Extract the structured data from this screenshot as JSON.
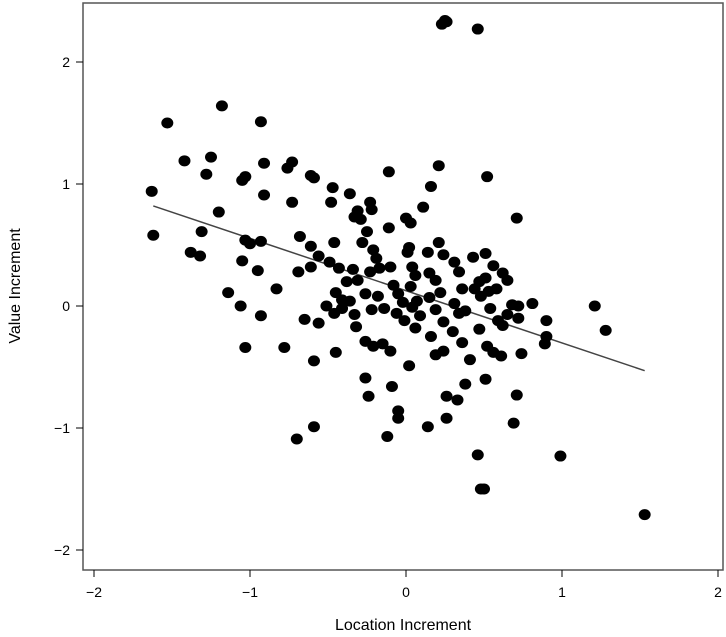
{
  "colors": {
    "background": "#ffffff",
    "ink": "#000000",
    "frame": "#555555",
    "fit_line": "#444444"
  },
  "chart_data": {
    "type": "scatter",
    "xlabel": "Location Increment",
    "ylabel": "Value Increment",
    "xlim": [
      -2,
      2
    ],
    "ylim": [
      -2.1,
      2.4
    ],
    "x_ticks": [
      -2,
      -1,
      0,
      1,
      2
    ],
    "y_ticks": [
      -2,
      -1,
      0,
      1,
      2
    ],
    "x_tick_labels": [
      "−2",
      "−1",
      "0",
      "1",
      "2"
    ],
    "y_tick_labels": [
      "−2",
      "−1",
      "0",
      "1",
      "2"
    ],
    "grid": false,
    "legend": "none",
    "fit_line": {
      "x": [
        -1.62,
        1.53
      ],
      "y": [
        0.82,
        -0.53
      ]
    },
    "points": [
      [
        0.25,
        2.34
      ],
      [
        0.23,
        2.31
      ],
      [
        0.26,
        2.33
      ],
      [
        0.46,
        2.27
      ],
      [
        -1.53,
        1.5
      ],
      [
        -1.18,
        1.64
      ],
      [
        -0.93,
        1.51
      ],
      [
        -1.63,
        0.94
      ],
      [
        -1.62,
        0.58
      ],
      [
        -1.42,
        1.19
      ],
      [
        -1.25,
        1.22
      ],
      [
        -1.28,
        1.08
      ],
      [
        -1.2,
        0.77
      ],
      [
        -1.31,
        0.61
      ],
      [
        -1.38,
        0.44
      ],
      [
        -1.32,
        0.41
      ],
      [
        -1.05,
        1.03
      ],
      [
        -1.03,
        1.06
      ],
      [
        -1.03,
        0.54
      ],
      [
        -1.0,
        0.51
      ],
      [
        -1.05,
        0.37
      ],
      [
        -0.91,
        1.17
      ],
      [
        -0.91,
        0.91
      ],
      [
        -0.93,
        0.53
      ],
      [
        -0.95,
        0.29
      ],
      [
        -0.83,
        0.14
      ],
      [
        -1.14,
        0.11
      ],
      [
        -1.06,
        0.0
      ],
      [
        -0.93,
        -0.08
      ],
      [
        -1.03,
        -0.34
      ],
      [
        -0.78,
        -0.34
      ],
      [
        -0.76,
        1.13
      ],
      [
        -0.73,
        1.18
      ],
      [
        -0.73,
        0.85
      ],
      [
        -0.68,
        0.57
      ],
      [
        -0.61,
        1.07
      ],
      [
        -0.59,
        1.05
      ],
      [
        -0.61,
        0.49
      ],
      [
        -0.56,
        0.41
      ],
      [
        -0.69,
        0.28
      ],
      [
        -0.61,
        0.32
      ],
      [
        -0.65,
        -0.11
      ],
      [
        -0.56,
        -0.14
      ],
      [
        -0.59,
        -0.45
      ],
      [
        -0.59,
        -0.99
      ],
      [
        -0.7,
        -1.09
      ],
      [
        -0.47,
        0.97
      ],
      [
        -0.48,
        0.85
      ],
      [
        -0.36,
        0.92
      ],
      [
        -0.31,
        0.78
      ],
      [
        -0.33,
        0.73
      ],
      [
        -0.29,
        0.71
      ],
      [
        -0.23,
        0.85
      ],
      [
        -0.22,
        0.79
      ],
      [
        -0.46,
        0.52
      ],
      [
        -0.49,
        0.36
      ],
      [
        -0.43,
        0.31
      ],
      [
        -0.38,
        0.2
      ],
      [
        -0.45,
        0.11
      ],
      [
        -0.41,
        0.05
      ],
      [
        -0.34,
        0.3
      ],
      [
        -0.31,
        0.21
      ],
      [
        -0.28,
        0.52
      ],
      [
        -0.25,
        0.61
      ],
      [
        -0.21,
        0.46
      ],
      [
        -0.19,
        0.39
      ],
      [
        -0.23,
        0.28
      ],
      [
        -0.17,
        0.31
      ],
      [
        -0.51,
        0.0
      ],
      [
        -0.46,
        -0.06
      ],
      [
        -0.41,
        -0.02
      ],
      [
        -0.36,
        0.04
      ],
      [
        -0.33,
        -0.07
      ],
      [
        -0.26,
        0.1
      ],
      [
        -0.22,
        -0.03
      ],
      [
        -0.18,
        0.08
      ],
      [
        -0.14,
        -0.02
      ],
      [
        -0.45,
        -0.38
      ],
      [
        -0.32,
        -0.17
      ],
      [
        -0.26,
        -0.29
      ],
      [
        -0.21,
        -0.33
      ],
      [
        -0.15,
        -0.31
      ],
      [
        -0.26,
        -0.59
      ],
      [
        -0.24,
        -0.74
      ],
      [
        -0.11,
        1.1
      ],
      [
        -0.11,
        0.64
      ],
      [
        -0.1,
        0.32
      ],
      [
        -0.08,
        0.17
      ],
      [
        -0.05,
        0.1
      ],
      [
        -0.02,
        0.03
      ],
      [
        -0.06,
        -0.06
      ],
      [
        -0.01,
        -0.12
      ],
      [
        -0.1,
        -0.37
      ],
      [
        -0.09,
        -0.66
      ],
      [
        -0.05,
        -0.86
      ],
      [
        -0.05,
        -0.92
      ],
      [
        -0.12,
        -1.07
      ],
      [
        0.0,
        0.72
      ],
      [
        0.03,
        0.68
      ],
      [
        0.02,
        0.48
      ],
      [
        0.01,
        0.44
      ],
      [
        0.04,
        0.32
      ],
      [
        0.06,
        0.25
      ],
      [
        0.03,
        0.16
      ],
      [
        0.07,
        0.04
      ],
      [
        0.04,
        -0.01
      ],
      [
        0.09,
        -0.08
      ],
      [
        0.06,
        -0.18
      ],
      [
        0.02,
        -0.49
      ],
      [
        0.11,
        0.81
      ],
      [
        0.16,
        0.98
      ],
      [
        0.21,
        1.15
      ],
      [
        0.14,
        0.44
      ],
      [
        0.21,
        0.52
      ],
      [
        0.24,
        0.42
      ],
      [
        0.15,
        0.27
      ],
      [
        0.19,
        0.21
      ],
      [
        0.22,
        0.11
      ],
      [
        0.15,
        0.07
      ],
      [
        0.19,
        -0.03
      ],
      [
        0.24,
        -0.13
      ],
      [
        0.16,
        -0.25
      ],
      [
        0.19,
        -0.4
      ],
      [
        0.24,
        -0.37
      ],
      [
        0.14,
        -0.99
      ],
      [
        0.26,
        -0.74
      ],
      [
        0.26,
        -0.92
      ],
      [
        0.31,
        0.36
      ],
      [
        0.34,
        0.28
      ],
      [
        0.36,
        0.14
      ],
      [
        0.31,
        0.02
      ],
      [
        0.34,
        -0.06
      ],
      [
        0.38,
        -0.04
      ],
      [
        0.3,
        -0.21
      ],
      [
        0.36,
        -0.3
      ],
      [
        0.33,
        -0.77
      ],
      [
        0.41,
        -0.44
      ],
      [
        0.38,
        -0.64
      ],
      [
        0.43,
        0.4
      ],
      [
        0.47,
        0.2
      ],
      [
        0.44,
        0.14
      ],
      [
        0.51,
        0.43
      ],
      [
        0.51,
        0.23
      ],
      [
        0.48,
        0.08
      ],
      [
        0.53,
        0.12
      ],
      [
        0.56,
        0.33
      ],
      [
        0.58,
        0.14
      ],
      [
        0.54,
        -0.02
      ],
      [
        0.59,
        -0.12
      ],
      [
        0.47,
        -0.19
      ],
      [
        0.52,
        -0.33
      ],
      [
        0.56,
        -0.38
      ],
      [
        0.51,
        -0.6
      ],
      [
        0.52,
        1.06
      ],
      [
        0.46,
        -1.22
      ],
      [
        0.48,
        -1.5
      ],
      [
        0.5,
        -1.5
      ],
      [
        0.62,
        0.27
      ],
      [
        0.65,
        0.21
      ],
      [
        0.68,
        0.01
      ],
      [
        0.71,
        0.72
      ],
      [
        0.72,
        0.0
      ],
      [
        0.62,
        -0.16
      ],
      [
        0.65,
        -0.07
      ],
      [
        0.72,
        -0.1
      ],
      [
        0.74,
        -0.39
      ],
      [
        0.71,
        -0.73
      ],
      [
        0.69,
        -0.96
      ],
      [
        0.61,
        -0.41
      ],
      [
        0.81,
        0.02
      ],
      [
        0.9,
        -0.12
      ],
      [
        0.9,
        -0.25
      ],
      [
        0.89,
        -0.31
      ],
      [
        0.99,
        -1.23
      ],
      [
        1.21,
        0.0
      ],
      [
        1.28,
        -0.2
      ],
      [
        1.53,
        -1.71
      ]
    ]
  }
}
